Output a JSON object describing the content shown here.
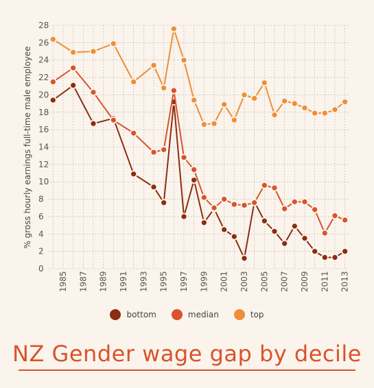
{
  "chart_data": {
    "type": "line",
    "title": "NZ Gender wage gap by decile",
    "ylabel": "% gross hourly earnings full-time male employee",
    "xlabel": "",
    "ylim": [
      0,
      28
    ],
    "xlim": [
      1983.5,
      2013.5
    ],
    "yticks": [
      0,
      2,
      4,
      6,
      8,
      10,
      12,
      14,
      16,
      18,
      20,
      22,
      24,
      26,
      28
    ],
    "xticks": [
      1985,
      1987,
      1989,
      1991,
      1993,
      1995,
      1997,
      1999,
      2001,
      2003,
      2005,
      2007,
      2009,
      2011,
      2013
    ],
    "grid": true,
    "legend_position": "bottom",
    "series": [
      {
        "name": "bottom",
        "color": "#8b2d10",
        "points": [
          [
            1984,
            19.4
          ],
          [
            1986,
            21.1
          ],
          [
            1988,
            16.7
          ],
          [
            1990,
            17.3
          ],
          [
            1992,
            10.9
          ],
          [
            1994,
            9.4
          ],
          [
            1995,
            7.6
          ],
          [
            1996,
            19.2
          ],
          [
            1997,
            6.0
          ],
          [
            1998,
            10.2
          ],
          [
            1999,
            5.3
          ],
          [
            2000,
            6.9
          ],
          [
            2001,
            4.5
          ],
          [
            2002,
            3.7
          ],
          [
            2003,
            1.2
          ],
          [
            2004,
            7.7
          ],
          [
            2005,
            5.5
          ],
          [
            2006,
            4.3
          ],
          [
            2007,
            2.9
          ],
          [
            2008,
            4.9
          ],
          [
            2009,
            3.5
          ],
          [
            2010,
            2.0
          ],
          [
            2011,
            1.3
          ],
          [
            2012,
            1.3
          ],
          [
            2013,
            2.0
          ]
        ]
      },
      {
        "name": "median",
        "color": "#d9532b",
        "points": [
          [
            1984,
            21.5
          ],
          [
            1986,
            23.1
          ],
          [
            1988,
            20.3
          ],
          [
            1990,
            17.1
          ],
          [
            1992,
            15.6
          ],
          [
            1994,
            13.4
          ],
          [
            1995,
            13.7
          ],
          [
            1996,
            20.5
          ],
          [
            1997,
            12.8
          ],
          [
            1998,
            11.4
          ],
          [
            1999,
            8.2
          ],
          [
            2000,
            7.0
          ],
          [
            2001,
            8.0
          ],
          [
            2002,
            7.4
          ],
          [
            2003,
            7.3
          ],
          [
            2004,
            7.6
          ],
          [
            2005,
            9.6
          ],
          [
            2006,
            9.3
          ],
          [
            2007,
            6.9
          ],
          [
            2008,
            7.7
          ],
          [
            2009,
            7.7
          ],
          [
            2010,
            6.8
          ],
          [
            2011,
            4.1
          ],
          [
            2012,
            6.1
          ],
          [
            2013,
            5.6
          ]
        ]
      },
      {
        "name": "top",
        "color": "#ee8e36",
        "points": [
          [
            1984,
            26.4
          ],
          [
            1986,
            24.9
          ],
          [
            1988,
            25.0
          ],
          [
            1990,
            25.9
          ],
          [
            1992,
            21.5
          ],
          [
            1994,
            23.4
          ],
          [
            1995,
            20.8
          ],
          [
            1996,
            27.6
          ],
          [
            1997,
            24.0
          ],
          [
            1998,
            19.4
          ],
          [
            1999,
            16.6
          ],
          [
            2000,
            16.7
          ],
          [
            2001,
            18.9
          ],
          [
            2002,
            17.1
          ],
          [
            2003,
            20.0
          ],
          [
            2004,
            19.6
          ],
          [
            2005,
            21.4
          ],
          [
            2006,
            17.7
          ],
          [
            2007,
            19.3
          ],
          [
            2008,
            19.0
          ],
          [
            2009,
            18.5
          ],
          [
            2010,
            17.9
          ],
          [
            2011,
            17.9
          ],
          [
            2012,
            18.3
          ],
          [
            2013,
            19.2
          ]
        ]
      }
    ]
  },
  "colors": {
    "bottom": "#8b2d10",
    "median": "#d9532b",
    "top": "#ee8e36",
    "grid": "#b9b3aa",
    "background": "#faf4ec"
  }
}
